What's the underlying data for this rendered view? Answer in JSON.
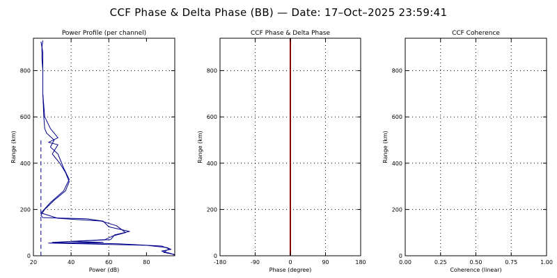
{
  "title": "CCF Phase & Delta Phase (BB) — Date: 17–Oct–2025 23:59:41",
  "colors": {
    "series": "#00008b",
    "phase_line": "#8b0000",
    "axes": "#000000"
  },
  "chart_data": [
    {
      "type": "line",
      "title": "Power Profile (per channel)",
      "xlabel": "Power (dB)",
      "ylabel": "Range (km)",
      "xlim": [
        20,
        95
      ],
      "ylim": [
        0,
        940
      ],
      "xticks": [
        20,
        40,
        60,
        80
      ],
      "yticks": [
        0,
        200,
        400,
        600,
        800
      ],
      "grid": true,
      "series": [
        {
          "style": "solid",
          "x": [
            25,
            24.5,
            24.5,
            25,
            25,
            25,
            25.5,
            26,
            29,
            33,
            28,
            33,
            30,
            34,
            37,
            39,
            37,
            31,
            26,
            24,
            25,
            48,
            57,
            60,
            71,
            63,
            61,
            40,
            57,
            28,
            55,
            80,
            91,
            93,
            88,
            93,
            95
          ],
          "y": [
            930,
            900,
            850,
            800,
            750,
            700,
            650,
            600,
            550,
            510,
            490,
            480,
            440,
            400,
            360,
            320,
            280,
            240,
            200,
            175,
            165,
            160,
            150,
            125,
            105,
            90,
            70,
            62,
            58,
            55,
            50,
            45,
            35,
            28,
            20,
            10,
            2
          ]
        },
        {
          "style": "solid",
          "x": [
            24,
            25,
            25,
            25,
            25.5,
            26,
            27,
            31,
            29,
            33,
            36,
            39,
            36,
            29,
            24,
            33,
            56,
            64,
            69,
            62,
            58,
            47,
            30,
            65,
            88,
            92,
            89,
            95
          ],
          "y": [
            925,
            880,
            800,
            700,
            600,
            550,
            530,
            500,
            470,
            440,
            380,
            330,
            280,
            230,
            185,
            162,
            150,
            130,
            100,
            85,
            70,
            65,
            58,
            52,
            42,
            30,
            15,
            5
          ]
        },
        {
          "style": "dashed",
          "x": [
            24,
            24
          ],
          "y": [
            0,
            500
          ]
        }
      ]
    },
    {
      "type": "line",
      "title": "CCF Phase & Delta Phase",
      "xlabel": "Phase (degree)",
      "ylabel": "Range (km)",
      "xlim": [
        -180,
        180
      ],
      "ylim": [
        0,
        940
      ],
      "xticks": [
        -180,
        -90,
        0,
        90,
        180
      ],
      "yticks": [
        0,
        200,
        400,
        600,
        800
      ],
      "grid": true,
      "series": [
        {
          "style": "solid",
          "x": [
            0,
            0
          ],
          "y": [
            0,
            940
          ]
        }
      ]
    },
    {
      "type": "line",
      "title": "CCF Coherence",
      "xlabel": "Coherence (linear)",
      "ylabel": "Range (km)",
      "xlim": [
        0,
        1
      ],
      "ylim": [
        0,
        940
      ],
      "xticks": [
        0.0,
        0.25,
        0.5,
        0.75,
        1.0
      ],
      "xtick_labels": [
        "0.00",
        "0.25",
        "0.50",
        "0.75",
        "1.00"
      ],
      "yticks": [
        0,
        200,
        400,
        600,
        800
      ],
      "grid": true,
      "series": []
    }
  ]
}
